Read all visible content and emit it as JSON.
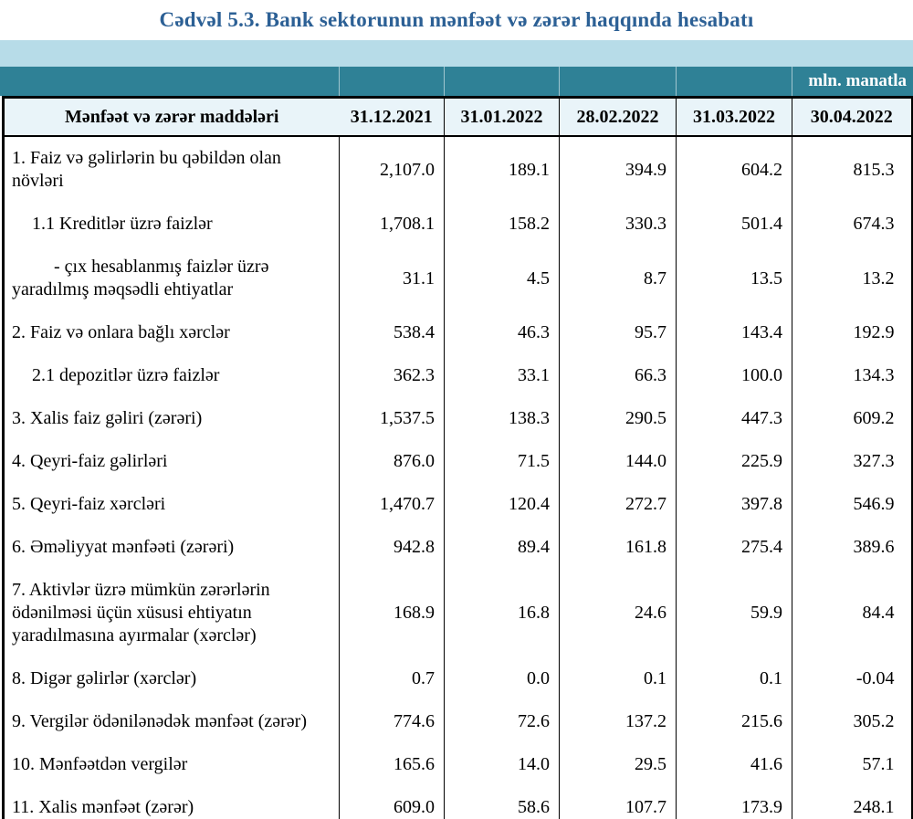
{
  "title": "Cədvəl 5.3. Bank sektorunun mənfəət və zərər haqqında hesabatı",
  "unit_label": "mln. manatla",
  "colors": {
    "title": "#2c6095",
    "band_light": "#b7dce8",
    "band_teal": "#2f8196",
    "header_bg": "#e9f4f9"
  },
  "table": {
    "header": {
      "items_column": "Mənfəət və zərər maddələri",
      "dates": [
        "31.12.2021",
        "31.01.2022",
        "28.02.2022",
        "31.03.2022",
        "30.04.2022"
      ]
    },
    "rows": [
      {
        "label": "1. Faiz və gəlirlərin bu qəbildən olan növləri",
        "indent": 0,
        "values": [
          "2,107.0",
          "189.1",
          "394.9",
          "604.2",
          "815.3"
        ]
      },
      {
        "label": "1.1 Kreditlər üzrə faizlər",
        "indent": 1,
        "values": [
          "1,708.1",
          "158.2",
          "330.3",
          "501.4",
          "674.3"
        ]
      },
      {
        "label": "-  çıx hesablanmış faizlər üzrə",
        "label2": "yaradılmış məqsədli ehtiyatlar",
        "indent": 2,
        "values": [
          "31.1",
          "4.5",
          "8.7",
          "13.5",
          "13.2"
        ]
      },
      {
        "label": "2. Faiz və onlara bağlı xərclər",
        "indent": 0,
        "values": [
          "538.4",
          "46.3",
          "95.7",
          "143.4",
          "192.9"
        ]
      },
      {
        "label": "2.1 depozitlər üzrə faizlər",
        "indent": 1,
        "values": [
          "362.3",
          "33.1",
          "66.3",
          "100.0",
          "134.3"
        ]
      },
      {
        "label": "3. Xalis faiz gəliri (zərəri)",
        "indent": 0,
        "values": [
          "1,537.5",
          "138.3",
          "290.5",
          "447.3",
          "609.2"
        ]
      },
      {
        "label": "4. Qeyri-faiz gəlirləri",
        "indent": 0,
        "values": [
          "876.0",
          "71.5",
          "144.0",
          "225.9",
          "327.3"
        ]
      },
      {
        "label": "5. Qeyri-faiz xərcləri",
        "indent": 0,
        "values": [
          "1,470.7",
          "120.4",
          "272.7",
          "397.8",
          "546.9"
        ]
      },
      {
        "label": "6. Əməliyyat mənfəəti (zərəri)",
        "indent": 0,
        "values": [
          "942.8",
          "89.4",
          "161.8",
          "275.4",
          "389.6"
        ]
      },
      {
        "label": "7. Aktivlər üzrə mümkün zərərlərin\nödənilməsi üçün xüsusi ehtiyatın\nyaradılmasına ayırmalar (xərclər)",
        "indent": 0,
        "values": [
          "168.9",
          "16.8",
          "24.6",
          "59.9",
          "84.4"
        ]
      },
      {
        "label": "8. Digər gəlirlər (xərclər)",
        "indent": 0,
        "values": [
          "0.7",
          "0.0",
          "0.1",
          "0.1",
          "-0.04"
        ]
      },
      {
        "label": "9. Vergilər ödənilənədək mənfəət (zərər)",
        "indent": 0,
        "values": [
          "774.6",
          "72.6",
          "137.2",
          "215.6",
          "305.2"
        ]
      },
      {
        "label": "10. Mənfəətdən vergilər",
        "indent": 0,
        "values": [
          "165.6",
          "14.0",
          "29.5",
          "41.6",
          "57.1"
        ]
      },
      {
        "label": "11. Xalis mənfəət (zərər)",
        "indent": 0,
        "values": [
          "609.0",
          "58.6",
          "107.7",
          "173.9",
          "248.1"
        ]
      }
    ]
  }
}
